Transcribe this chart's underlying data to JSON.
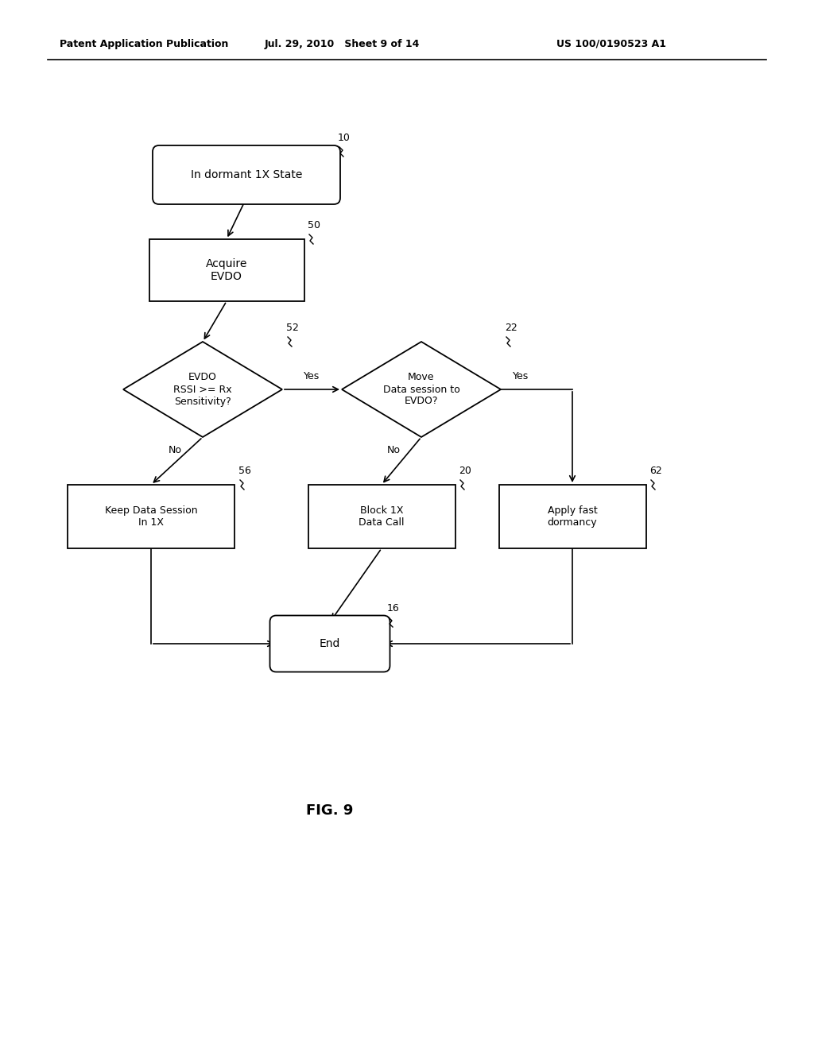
{
  "bg_color": "#ffffff",
  "header_left": "Patent Application Publication",
  "header_mid": "Jul. 29, 2010   Sheet 9 of 14",
  "header_right": "US 100/0190523 A1",
  "fig_label": "FIG. 9",
  "font_size_node": 10,
  "font_size_header": 9,
  "font_size_ref": 9,
  "font_size_fig": 13
}
